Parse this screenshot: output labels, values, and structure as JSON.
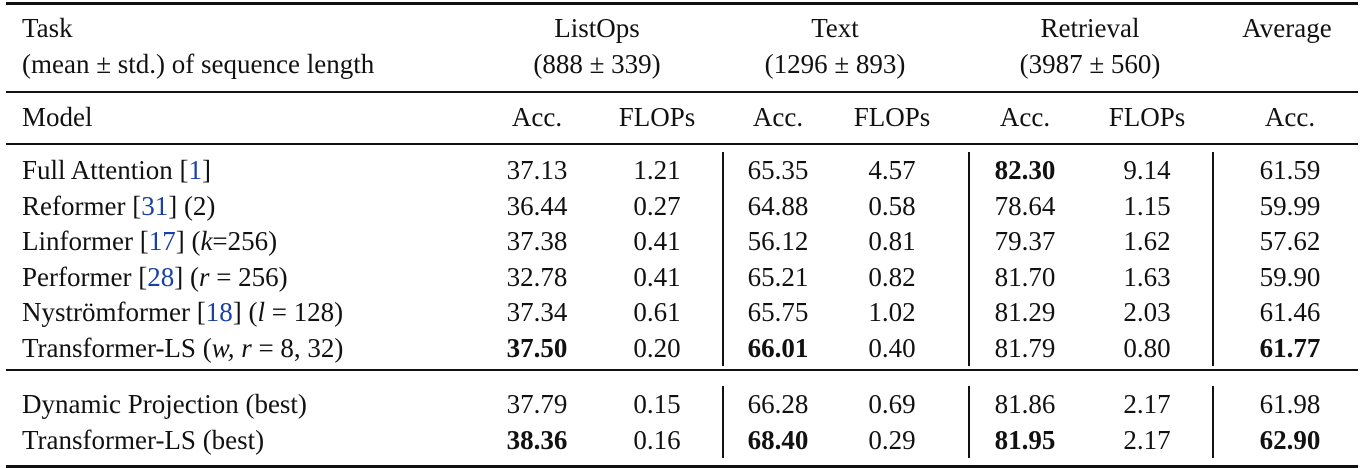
{
  "table": {
    "header": {
      "task": [
        "Task",
        "(mean ± std.) of sequence length"
      ],
      "groups": [
        {
          "name": "ListOps",
          "lengths": "(888 ± 339)"
        },
        {
          "name": "Text",
          "lengths": "(1296 ± 893)"
        },
        {
          "name": "Retrieval",
          "lengths": "(3987 ± 560)"
        },
        {
          "name": "Average"
        }
      ],
      "columns": [
        "Model",
        "Acc.",
        "FLOPs",
        "Acc.",
        "FLOPs",
        "Acc.",
        "FLOPs",
        "Acc."
      ]
    },
    "groups": [
      {
        "rows": [
          {
            "model": [
              {
                "text": "Full Attention ["
              },
              {
                "text": "1",
                "link": true
              },
              {
                "text": "]"
              }
            ],
            "cells": [
              "37.13",
              "1.21",
              "65.35",
              "4.57",
              "82.30",
              "9.14",
              "61.59"
            ],
            "bold": [
              4
            ]
          },
          {
            "model": [
              {
                "text": "Reformer ["
              },
              {
                "text": "31",
                "link": true
              },
              {
                "text": "] (2)"
              }
            ],
            "cells": [
              "36.44",
              "0.27",
              "64.88",
              "0.58",
              "78.64",
              "1.15",
              "59.99"
            ],
            "bold": []
          },
          {
            "model": [
              {
                "text": "Linformer ["
              },
              {
                "text": "17",
                "link": true
              },
              {
                "text": "] ("
              },
              {
                "text": "k",
                "italic": true
              },
              {
                "text": "=256)"
              }
            ],
            "cells": [
              "37.38",
              "0.41",
              "56.12",
              "0.81",
              "79.37",
              "1.62",
              "57.62"
            ],
            "bold": []
          },
          {
            "model": [
              {
                "text": "Performer ["
              },
              {
                "text": "28",
                "link": true
              },
              {
                "text": "] ("
              },
              {
                "text": "r",
                "italic": true
              },
              {
                "text": " = 256)"
              }
            ],
            "cells": [
              "32.78",
              "0.41",
              "65.21",
              "0.82",
              "81.70",
              "1.63",
              "59.90"
            ],
            "bold": []
          },
          {
            "model": [
              {
                "text": "Nyströmformer ["
              },
              {
                "text": "18",
                "link": true
              },
              {
                "text": "] ("
              },
              {
                "text": "l",
                "italic": true
              },
              {
                "text": " = 128)"
              }
            ],
            "cells": [
              "37.34",
              "0.61",
              "65.75",
              "1.02",
              "81.29",
              "2.03",
              "61.46"
            ],
            "bold": []
          },
          {
            "model": [
              {
                "text": "Transformer-LS ("
              },
              {
                "text": "w, r",
                "italic": true
              },
              {
                "text": " = 8, 32)"
              }
            ],
            "cells": [
              "37.50",
              "0.20",
              "66.01",
              "0.40",
              "81.79",
              "0.80",
              "61.77"
            ],
            "bold": [
              0,
              2,
              6
            ]
          }
        ]
      },
      {
        "rows": [
          {
            "model": [
              {
                "text": "Dynamic Projection (best)"
              }
            ],
            "cells": [
              "37.79",
              "0.15",
              "66.28",
              "0.69",
              "81.86",
              "2.17",
              "61.98"
            ],
            "bold": []
          },
          {
            "model": [
              {
                "text": "Transformer-LS (best)"
              }
            ],
            "cells": [
              "38.36",
              "0.16",
              "68.40",
              "0.29",
              "81.95",
              "2.17",
              "62.90"
            ],
            "bold": [
              0,
              2,
              4,
              6
            ]
          }
        ]
      }
    ]
  }
}
